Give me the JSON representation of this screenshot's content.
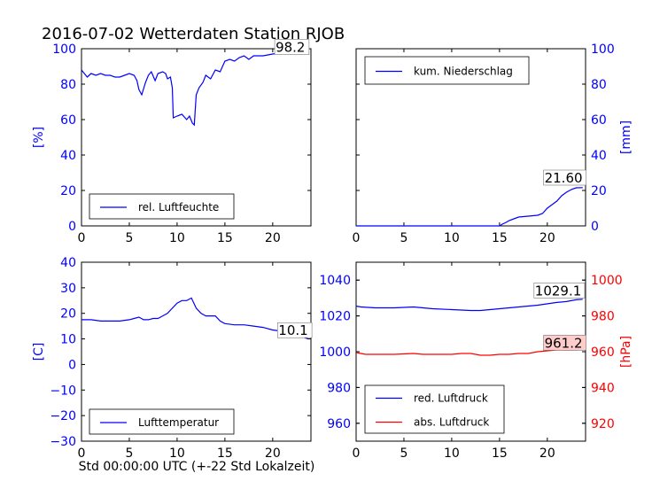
{
  "figure": {
    "title": "2016-07-02 Wetterdaten Station RJOB",
    "xlabel": "Std 00:00:00 UTC (+-22 Std Lokalzeit)"
  },
  "colors": {
    "blue": "#0000ff",
    "red": "#ff0000",
    "axis": "#000000",
    "annot_bg": "#ffcccc"
  },
  "chart_data": [
    {
      "type": "line",
      "panel": "top-left",
      "ylabel": "[%]",
      "ylabel_color": "#0000ff",
      "tick_color": "#0000ff",
      "ylim": [
        0,
        100
      ],
      "yticks": [
        0,
        20,
        40,
        60,
        80,
        100
      ],
      "xlim": [
        0,
        24
      ],
      "xticks": [
        0,
        5,
        10,
        15,
        20
      ],
      "legend_location": "lower-center",
      "annotation": {
        "text": "98.2",
        "x": 20.3,
        "y": 98.2
      },
      "series": [
        {
          "name": "rel. Luftfeuchte",
          "color": "#0000ff",
          "x": [
            0,
            0.3,
            0.6,
            1.0,
            1.5,
            2.0,
            2.5,
            3.0,
            3.5,
            4.0,
            4.5,
            5.0,
            5.5,
            5.8,
            6.0,
            6.3,
            6.7,
            7.0,
            7.3,
            7.7,
            8.0,
            8.5,
            8.8,
            9.0,
            9.3,
            9.5,
            9.6,
            10.0,
            10.5,
            11.0,
            11.3,
            11.6,
            11.8,
            12.0,
            12.3,
            12.7,
            13.0,
            13.5,
            14.0,
            14.5,
            15.0,
            15.5,
            16.0,
            16.5,
            17.0,
            17.5,
            18.0,
            19.0,
            20.0,
            21.0,
            22.0,
            23.0,
            23.7
          ],
          "values": [
            88,
            86,
            84,
            86,
            85,
            86,
            85,
            85,
            84,
            84,
            85,
            86,
            85,
            82,
            77,
            74,
            81,
            85,
            87,
            82,
            86,
            87,
            86,
            83,
            84,
            78,
            61,
            62,
            63,
            60,
            62,
            58,
            57,
            74,
            78,
            81,
            85,
            83,
            88,
            87,
            93,
            94,
            93,
            95,
            96,
            94,
            96,
            96,
            97,
            98,
            98,
            98,
            98
          ]
        }
      ]
    },
    {
      "type": "line",
      "panel": "top-right",
      "ylabel": "[mm]",
      "ylabel_color": "#0000ff",
      "tick_color": "#0000ff",
      "ylim": [
        0,
        100
      ],
      "yticks": [
        0,
        20,
        40,
        60,
        80,
        100
      ],
      "xlim": [
        0,
        24
      ],
      "xticks": [
        0,
        5,
        10,
        15,
        20
      ],
      "legend_location": "top-left",
      "annotation": {
        "text": "21.60",
        "x": 19.7,
        "y": 24.5
      },
      "series": [
        {
          "name": "kum. Niederschlag",
          "color": "#0000ff",
          "x": [
            0,
            15.0,
            15.3,
            15.7,
            16.0,
            16.5,
            17.0,
            18.0,
            19.0,
            19.5,
            20.0,
            20.5,
            21.0,
            21.5,
            22.0,
            22.5,
            23.0,
            23.7
          ],
          "values": [
            0,
            0,
            1,
            2,
            3,
            4,
            5,
            5.5,
            6,
            7,
            10,
            12,
            14,
            17,
            19,
            20.5,
            21.5,
            21.6
          ]
        }
      ]
    },
    {
      "type": "line",
      "panel": "bottom-left",
      "ylabel": "[C]",
      "ylabel_color": "#0000ff",
      "tick_color": "#0000ff",
      "ylim": [
        -30,
        40
      ],
      "yticks": [
        -30,
        -20,
        -10,
        0,
        10,
        20,
        30,
        40
      ],
      "xlim": [
        0,
        24
      ],
      "xticks": [
        0,
        5,
        10,
        15,
        20
      ],
      "legend_location": "lower-center",
      "annotation": {
        "text": "10.1",
        "x": 20.6,
        "y": 11.5
      },
      "series": [
        {
          "name": "Lufttemperatur",
          "color": "#0000ff",
          "x": [
            0,
            1,
            2,
            3,
            4,
            5,
            5.5,
            6,
            6.5,
            7,
            7.5,
            8,
            8.5,
            9,
            9.5,
            10,
            10.5,
            11,
            11.5,
            12,
            12.5,
            13,
            13.5,
            14,
            14.5,
            15,
            16,
            17,
            18,
            19,
            20,
            21,
            22,
            23,
            23.7
          ],
          "values": [
            17.5,
            17.5,
            17,
            17,
            17,
            17.5,
            18,
            18.5,
            17.5,
            17.5,
            18,
            18,
            19,
            20,
            22,
            24,
            25,
            25,
            26,
            22,
            20,
            19,
            19,
            19,
            17,
            16,
            15.5,
            15.5,
            15,
            14.5,
            13.5,
            13,
            12,
            11,
            10
          ]
        }
      ]
    },
    {
      "type": "line",
      "panel": "bottom-right",
      "ylabel": "[hPa]",
      "ylabel_color": "#ff0000",
      "left_tick_color": "#0000ff",
      "right_tick_color": "#ff0000",
      "ylim_left": [
        950,
        1050
      ],
      "yticks_left": [
        960,
        980,
        1000,
        1020,
        1040
      ],
      "ylim_right": [
        910,
        1010
      ],
      "yticks_right": [
        920,
        940,
        960,
        980,
        1000
      ],
      "xlim": [
        0,
        24
      ],
      "xticks": [
        0,
        5,
        10,
        15,
        20
      ],
      "legend_location": "lower-left",
      "annotations": [
        {
          "text": "1029.1",
          "x": 18.7,
          "axis": "left",
          "y": 1031.5,
          "bg": "#ffffff"
        },
        {
          "text": "961.2",
          "x": 19.7,
          "axis": "right",
          "y": 962.3,
          "bg": "#ffcccc"
        }
      ],
      "series": [
        {
          "name": "red. Luftdruck",
          "color": "#0000ff",
          "axis": "left",
          "x": [
            0,
            0.5,
            2,
            4,
            6,
            7,
            8,
            10,
            12,
            13,
            14,
            15,
            17,
            19,
            21,
            22,
            23,
            23.7
          ],
          "values": [
            1025.5,
            1025,
            1024.5,
            1024.5,
            1025,
            1024.5,
            1024,
            1023.5,
            1023,
            1023,
            1023.5,
            1024,
            1025,
            1026,
            1027.5,
            1028,
            1029,
            1029.3
          ]
        },
        {
          "name": "abs. Luftdruck",
          "color": "#ff0000",
          "axis": "right",
          "x": [
            0,
            0.5,
            1,
            2,
            4,
            6,
            7,
            8,
            10,
            11,
            12,
            13,
            14,
            15,
            16,
            17,
            18,
            19,
            20,
            21,
            22,
            23,
            23.7
          ],
          "values": [
            959.5,
            959,
            958.5,
            958.5,
            958.5,
            959,
            958.5,
            958.5,
            958.5,
            959,
            959,
            958,
            958,
            958.5,
            958.5,
            959,
            959,
            960,
            960.5,
            961,
            961,
            961,
            961.2
          ]
        }
      ]
    }
  ]
}
